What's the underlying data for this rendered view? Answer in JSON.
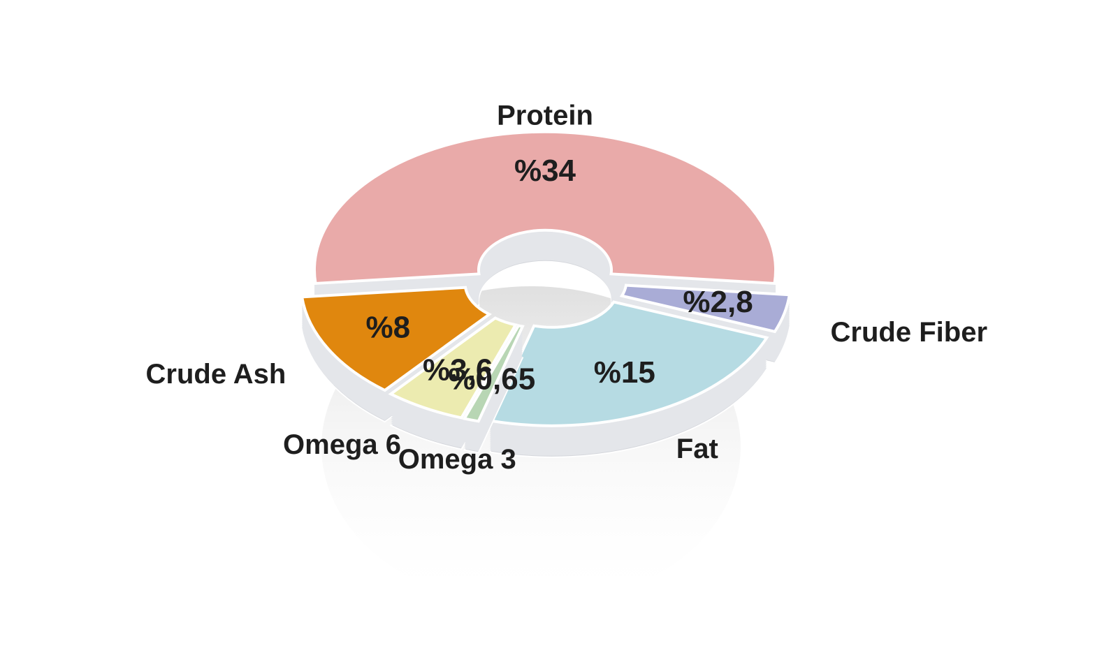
{
  "chart_data": {
    "type": "pie",
    "categories": [
      "Protein",
      "Crude Fiber",
      "Fat",
      "Omega 3",
      "Omega 6",
      "Crude Ash"
    ],
    "values": [
      34,
      2.8,
      15,
      0.65,
      3.6,
      8
    ],
    "value_labels": [
      "%34",
      "%2,8",
      "%15",
      "%0,65",
      "%3,6",
      "%8"
    ],
    "colors": [
      "#e9aaa9",
      "#a9acd6",
      "#b6dbe3",
      "#b8d6b4",
      "#ecebb0",
      "#e0870e"
    ]
  }
}
